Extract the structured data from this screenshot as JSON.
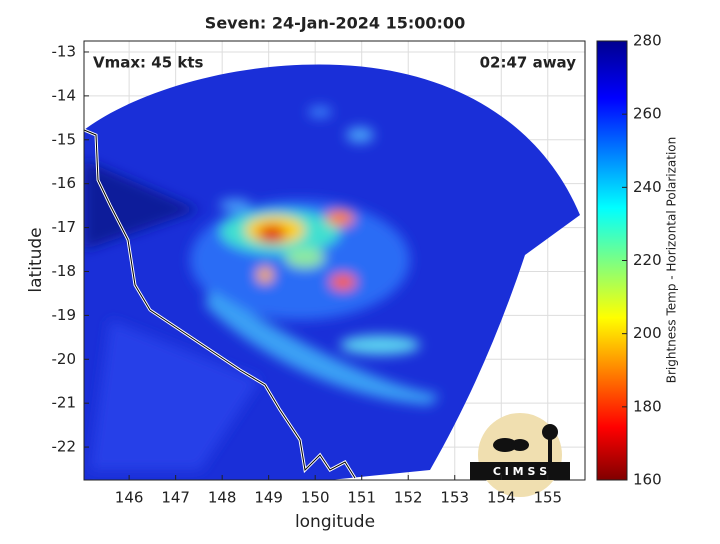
{
  "chart_data": {
    "type": "map",
    "title": "Seven: 24-Jan-2024 15:00:00",
    "annotations": [
      "Vmax: 45 kts",
      "02:47 away"
    ],
    "xlabel": "longitude",
    "ylabel": "latitude",
    "xlim": [
      145.03,
      155.8
    ],
    "ylim": [
      -22.75,
      -12.75
    ],
    "xticks": [
      146,
      147,
      148,
      149,
      150,
      151,
      152,
      153,
      154,
      155
    ],
    "yticks": [
      -13,
      -14,
      -15,
      -16,
      -17,
      -18,
      -19,
      -20,
      -21,
      -22
    ],
    "grid": true,
    "colorbar": {
      "label": "Brightness Temp - Horizontal Polarization",
      "lim": [
        160,
        280
      ],
      "ticks": [
        160,
        180,
        200,
        220,
        240,
        260,
        280
      ]
    },
    "logo": "C I M S S"
  }
}
